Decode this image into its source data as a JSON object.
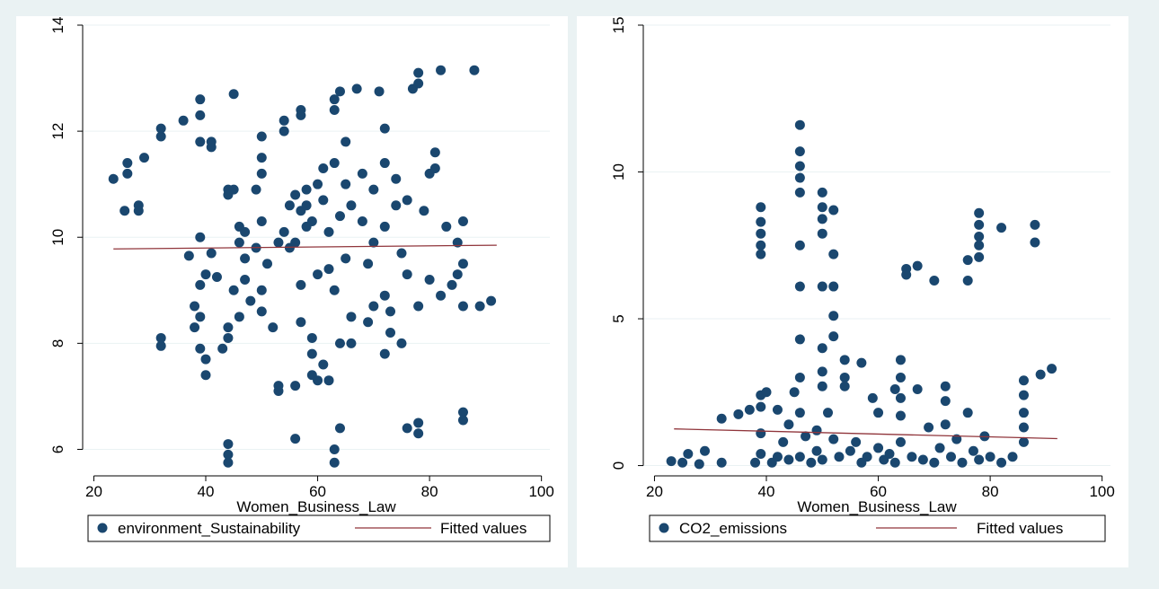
{
  "chart_data": [
    {
      "type": "scatter",
      "x_label": "Women_Business_Law",
      "xlim": [
        18,
        101.5
      ],
      "ylim": [
        5.5,
        14
      ],
      "xticks": [
        20,
        40,
        60,
        80,
        100
      ],
      "yticks": [
        6,
        8,
        10,
        12,
        14
      ],
      "grid": true,
      "series": [
        {
          "name": "environment_Sustainability",
          "color": "#1a476f",
          "type": "scatter",
          "x": [
            23.5,
            25.5,
            26,
            26,
            28,
            28,
            29,
            32,
            32,
            32,
            32,
            36,
            37,
            38,
            38,
            39,
            39,
            39,
            39,
            39,
            39,
            39,
            40,
            40,
            40,
            41,
            41,
            41,
            42,
            43,
            44,
            44,
            44,
            44,
            44,
            44,
            44,
            45,
            45,
            45,
            46,
            46,
            46,
            47,
            47,
            47,
            48,
            49,
            49,
            50,
            50,
            50,
            50,
            50,
            50,
            51,
            52,
            53,
            53,
            53,
            54,
            54,
            54,
            55,
            55,
            56,
            56,
            56,
            56,
            57,
            57,
            57,
            57,
            57,
            58,
            58,
            58,
            59,
            59,
            59,
            59,
            60,
            60,
            60,
            61,
            61,
            61,
            62,
            62,
            62,
            63,
            63,
            63,
            63,
            63,
            63,
            64,
            64,
            64,
            64,
            65,
            65,
            65,
            66,
            66,
            66,
            67,
            68,
            68,
            69,
            69,
            70,
            70,
            70,
            71,
            72,
            72,
            72,
            72,
            72,
            73,
            73,
            74,
            74,
            75,
            75,
            76,
            76,
            76,
            77,
            78,
            78,
            78,
            78,
            78,
            79,
            80,
            80,
            81,
            81,
            82,
            82,
            83,
            84,
            85,
            85,
            86,
            86,
            86,
            86,
            86,
            88,
            89,
            91
          ],
          "values": [
            11.1,
            10.5,
            11.2,
            11.4,
            10.6,
            10.5,
            11.5,
            11.9,
            12.05,
            8.1,
            7.95,
            12.2,
            9.65,
            8.7,
            8.3,
            12.6,
            12.3,
            11.8,
            10,
            9.1,
            8.5,
            7.9,
            7.7,
            7.4,
            9.3,
            11.7,
            11.8,
            9.7,
            9.25,
            7.9,
            8.3,
            8.1,
            10.9,
            10.8,
            6.1,
            5.9,
            5.75,
            12.7,
            10.9,
            9.0,
            9.9,
            10.2,
            8.5,
            9.6,
            9.2,
            10.1,
            8.8,
            10.9,
            9.8,
            11.9,
            11.5,
            11.2,
            10.3,
            9.0,
            8.6,
            9.5,
            8.3,
            7.1,
            7.2,
            9.9,
            12.2,
            12.0,
            10.1,
            10.6,
            9.8,
            10.8,
            9.9,
            6.2,
            7.2,
            12.4,
            12.3,
            10.5,
            9.1,
            8.4,
            10.9,
            10.6,
            10.2,
            10.3,
            8.1,
            7.8,
            7.4,
            11.0,
            9.3,
            7.3,
            11.3,
            10.7,
            7.6,
            9.4,
            7.3,
            10.1,
            12.6,
            12.4,
            11.4,
            9.0,
            6.0,
            5.75,
            10.4,
            8.0,
            6.4,
            12.75,
            11.8,
            11.0,
            9.6,
            10.6,
            8.5,
            8.0,
            12.8,
            11.2,
            10.3,
            9.5,
            8.4,
            10.9,
            9.9,
            8.7,
            12.75,
            11.4,
            12.05,
            10.2,
            8.9,
            7.8,
            8.2,
            8.6,
            10.6,
            11.1,
            9.7,
            8.0,
            10.7,
            9.3,
            6.4,
            12.8,
            13.1,
            12.9,
            6.5,
            6.3,
            8.7,
            10.5,
            11.2,
            9.2,
            11.6,
            11.3,
            13.15,
            8.9,
            10.2,
            9.1,
            9.3,
            9.9,
            10.3,
            9.5,
            8.7,
            6.7,
            6.55,
            13.15,
            8.7,
            8.8
          ]
        },
        {
          "name": "Fitted values",
          "color": "#90353b",
          "type": "line",
          "x": [
            23.5,
            92
          ],
          "values": [
            9.78,
            9.85
          ]
        }
      ]
    },
    {
      "type": "scatter",
      "x_label": "Women_Business_Law",
      "xlim": [
        18,
        101.5
      ],
      "ylim": [
        -0.35,
        15
      ],
      "xticks": [
        20,
        40,
        60,
        80,
        100
      ],
      "yticks": [
        0,
        5,
        10,
        15
      ],
      "grid": true,
      "series": [
        {
          "name": "CO2_emissions",
          "color": "#1a476f",
          "type": "scatter",
          "x": [
            23,
            25,
            26,
            28,
            29,
            32,
            32,
            35,
            37,
            38,
            39,
            39,
            39,
            39,
            39,
            39,
            39,
            39,
            39,
            40,
            41,
            42,
            42,
            43,
            44,
            44,
            45,
            46,
            46,
            46,
            46,
            46,
            46,
            46,
            46,
            46,
            46,
            46,
            47,
            48,
            49,
            49,
            50,
            50,
            50,
            50,
            50,
            50,
            50,
            50,
            50,
            51,
            52,
            52,
            52,
            52,
            52,
            52,
            53,
            54,
            54,
            54,
            55,
            56,
            57,
            57,
            58,
            59,
            60,
            60,
            61,
            62,
            63,
            63,
            64,
            64,
            64,
            64,
            64,
            65,
            65,
            66,
            67,
            67,
            68,
            69,
            70,
            70,
            71,
            72,
            72,
            72,
            73,
            74,
            75,
            76,
            76,
            76,
            77,
            78,
            78,
            78,
            78,
            78,
            78,
            79,
            80,
            82,
            82,
            84,
            86,
            86,
            86,
            86,
            86,
            88,
            88,
            89,
            91
          ],
          "values": [
            0.15,
            0.1,
            0.4,
            0.05,
            0.5,
            1.6,
            0.1,
            1.75,
            1.9,
            0.1,
            8.8,
            8.3,
            7.9,
            7.5,
            7.2,
            2.4,
            2.0,
            1.1,
            0.4,
            2.5,
            0.1,
            1.9,
            0.3,
            0.8,
            1.4,
            0.2,
            2.5,
            11.6,
            10.7,
            10.2,
            9.8,
            9.3,
            7.5,
            6.1,
            4.3,
            3.0,
            1.8,
            0.3,
            1.0,
            0.1,
            1.2,
            0.5,
            9.3,
            8.8,
            8.4,
            7.9,
            6.1,
            4.0,
            3.2,
            2.7,
            0.2,
            1.8,
            8.7,
            7.2,
            6.1,
            5.1,
            4.4,
            0.9,
            0.3,
            3.6,
            3.0,
            2.7,
            0.5,
            0.8,
            3.5,
            0.1,
            0.3,
            2.3,
            1.8,
            0.6,
            0.2,
            0.4,
            2.6,
            0.1,
            3.6,
            3.0,
            2.3,
            1.7,
            0.8,
            6.7,
            6.5,
            0.3,
            6.8,
            2.6,
            0.2,
            1.3,
            0.1,
            6.3,
            0.6,
            2.7,
            2.2,
            1.4,
            0.3,
            0.9,
            0.1,
            7.0,
            6.3,
            1.8,
            0.5,
            8.6,
            8.2,
            7.8,
            7.5,
            7.1,
            0.2,
            1.0,
            0.3,
            8.1,
            0.1,
            0.3,
            2.9,
            2.4,
            1.8,
            1.3,
            0.8,
            8.2,
            7.6,
            3.1,
            3.3
          ]
        },
        {
          "name": "Fitted values",
          "color": "#90353b",
          "type": "line",
          "x": [
            23.5,
            92
          ],
          "values": [
            1.25,
            0.92
          ]
        }
      ]
    }
  ]
}
